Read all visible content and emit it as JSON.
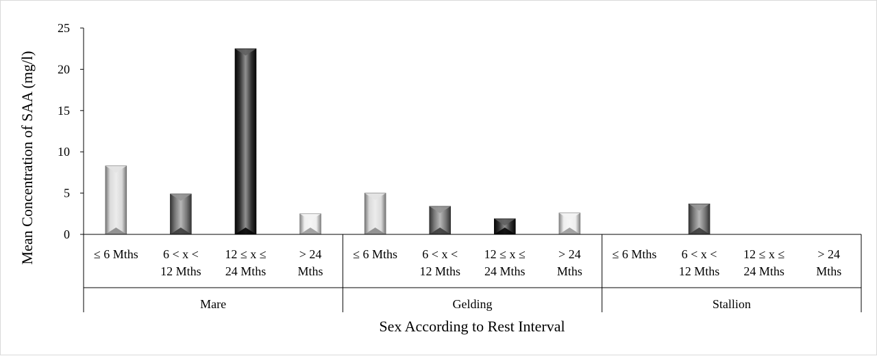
{
  "chart_data": {
    "type": "bar",
    "title": "",
    "xlabel": "Sex According to Rest Interval",
    "ylabel": "Mean Concentration of SAA  (mg/l)",
    "ylim": [
      0,
      25
    ],
    "yticks": [
      0,
      5,
      10,
      15,
      20,
      25
    ],
    "grid": false,
    "legend": "none",
    "groups": [
      "Mare",
      "Gelding",
      "Stallion"
    ],
    "categories": [
      [
        "≤ 6 Mths"
      ],
      [
        "6 < x <",
        "12 Mths"
      ],
      [
        "12 ≤ x ≤",
        "24 Mths"
      ],
      [
        "> 24",
        "Mths"
      ]
    ],
    "category_colors": [
      "#d4d4d4",
      "#5e5e5e",
      "#0a0a0a",
      "#ececec"
    ],
    "values": [
      [
        8.3,
        4.9,
        22.5,
        2.5
      ],
      [
        5.0,
        3.4,
        1.9,
        2.6
      ],
      [
        0,
        3.7,
        0,
        0
      ]
    ]
  }
}
